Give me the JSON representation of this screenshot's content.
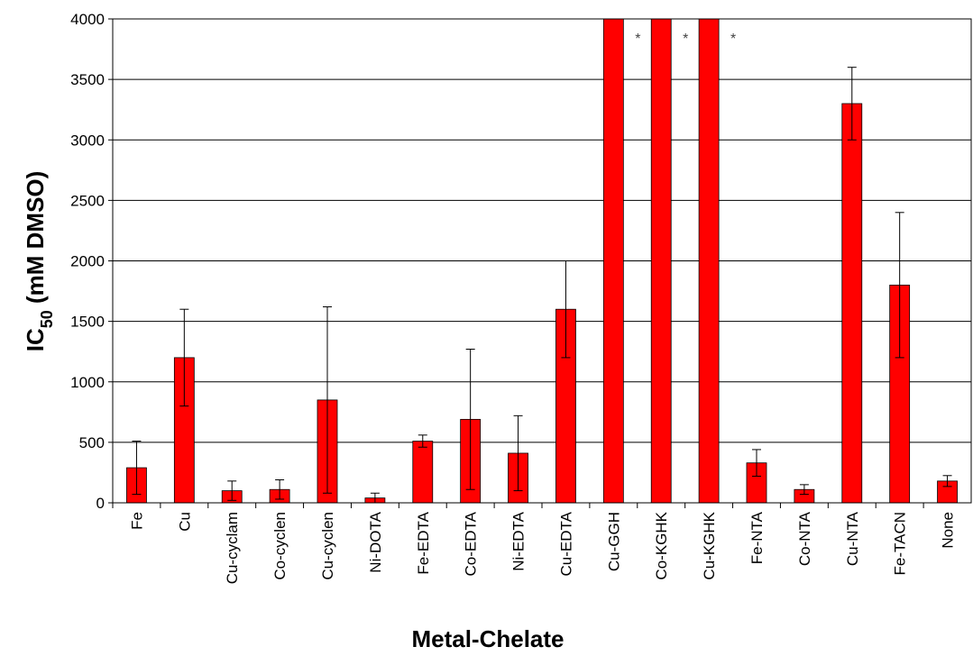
{
  "chart_data": {
    "type": "bar",
    "xlabel": "Metal-Chelate",
    "ylabel_main": "IC",
    "ylabel_sub": "50",
    "ylabel_rest": " (mM DMSO)",
    "ylim": [
      0,
      4000
    ],
    "yticks": [
      0,
      500,
      1000,
      1500,
      2000,
      2500,
      3000,
      3500,
      4000
    ],
    "grid": true,
    "bar_color": "#ff0000",
    "categories": [
      "Fe",
      "Cu",
      "Cu-cyclam",
      "Co-cyclen",
      "Cu-cyclen",
      "Ni-DOTA",
      "Fe-EDTA",
      "Co-EDTA",
      "Ni-EDTA",
      "Cu-EDTA",
      "Cu-GGH",
      "Co-KGHK",
      "Cu-KGHK",
      "Fe-NTA",
      "Co-NTA",
      "Cu-NTA",
      "Fe-TACN",
      "None"
    ],
    "values": [
      290,
      1200,
      100,
      110,
      850,
      40,
      510,
      690,
      410,
      1600,
      4000,
      4000,
      4000,
      330,
      110,
      3300,
      1800,
      180
    ],
    "errors": [
      220,
      400,
      80,
      80,
      770,
      40,
      50,
      580,
      310,
      400,
      null,
      null,
      null,
      110,
      40,
      300,
      600,
      45
    ],
    "annotations": [
      {
        "category": "Cu-GGH",
        "text": "*"
      },
      {
        "category": "Co-KGHK",
        "text": "*"
      },
      {
        "category": "Cu-KGHK",
        "text": "*"
      }
    ]
  }
}
